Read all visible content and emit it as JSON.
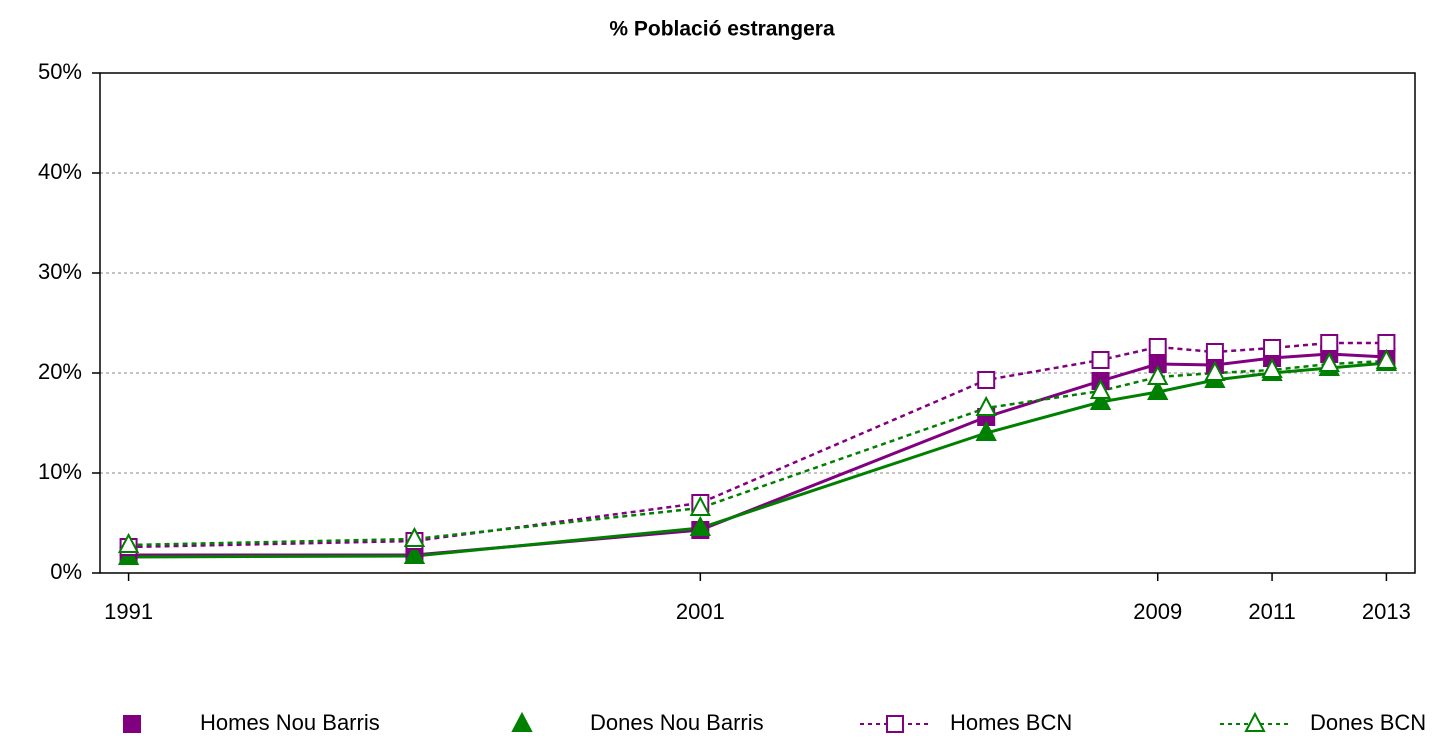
{
  "chart_data": {
    "type": "line",
    "title": "% Població estrangera",
    "x": [
      1991,
      1996,
      2001,
      2006,
      2008,
      2009,
      2010,
      2011,
      2012,
      2013
    ],
    "xlim": [
      1990.5,
      2013.5
    ],
    "xticks": [
      1991,
      2001,
      2009,
      2011,
      2013
    ],
    "ylim": [
      0,
      50
    ],
    "yticks": [
      {
        "value": 0,
        "label": "0%"
      },
      {
        "value": 10,
        "label": "10%"
      },
      {
        "value": 20,
        "label": "20%"
      },
      {
        "value": 30,
        "label": "30%"
      },
      {
        "value": 40,
        "label": "40%"
      },
      {
        "value": 50,
        "label": "50%"
      }
    ],
    "grid": true,
    "legend": "bottom",
    "series": [
      {
        "name": "Homes Nou Barris",
        "color": "#800080",
        "marker": "square",
        "filled": true,
        "dashed": false,
        "values": [
          1.8,
          1.8,
          4.3,
          15.6,
          19.2,
          20.9,
          20.8,
          21.5,
          21.9,
          21.6
        ]
      },
      {
        "name": "Dones Nou Barris",
        "color": "#008000",
        "marker": "triangle",
        "filled": true,
        "dashed": false,
        "values": [
          1.6,
          1.7,
          4.5,
          14.0,
          17.1,
          18.1,
          19.3,
          20.0,
          20.5,
          21.0
        ]
      },
      {
        "name": "Homes BCN",
        "color": "#800080",
        "marker": "square",
        "filled": false,
        "dashed": true,
        "values": [
          2.6,
          3.2,
          7.0,
          19.3,
          21.3,
          22.6,
          22.1,
          22.5,
          23.0,
          23.0
        ]
      },
      {
        "name": "Dones BCN",
        "color": "#008000",
        "marker": "triangle",
        "filled": false,
        "dashed": true,
        "values": [
          2.8,
          3.4,
          6.5,
          16.5,
          18.2,
          19.6,
          20.0,
          20.3,
          20.9,
          21.2
        ]
      }
    ]
  }
}
